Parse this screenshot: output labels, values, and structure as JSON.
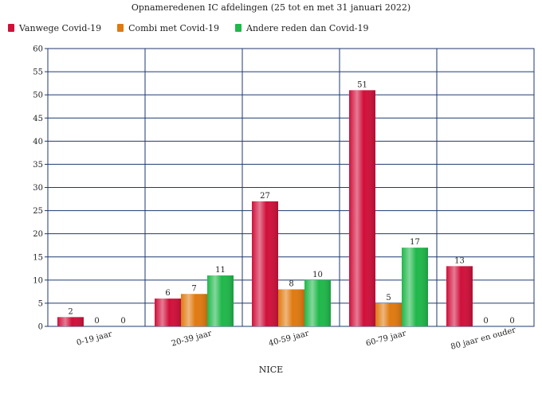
{
  "chart_data": {
    "type": "bar",
    "title": "Opnameredenen IC afdelingen (25 tot en met 31 januari 2022)",
    "xlabel": "NICE",
    "ylabel": "",
    "categories": [
      "0-19 jaar",
      "20-39 jaar",
      "40-59 jaar",
      "60-79 jaar",
      "80 jaar en ouder"
    ],
    "series": [
      {
        "name": "Vanwege Covid-19",
        "values": [
          2,
          6,
          27,
          51,
          13
        ],
        "color": "#d0103a"
      },
      {
        "name": "Combi met Covid-19",
        "values": [
          0,
          7,
          8,
          5,
          0
        ],
        "color": "#e07a10"
      },
      {
        "name": "Andere reden dan Covid-19",
        "values": [
          0,
          11,
          10,
          17,
          0
        ],
        "color": "#1fb84a"
      }
    ],
    "ylim": [
      0,
      60
    ],
    "yticks": [
      0,
      5,
      10,
      15,
      20,
      25,
      30,
      35,
      40,
      45,
      50,
      55,
      60
    ],
    "grid": true,
    "legend": "top-left"
  }
}
